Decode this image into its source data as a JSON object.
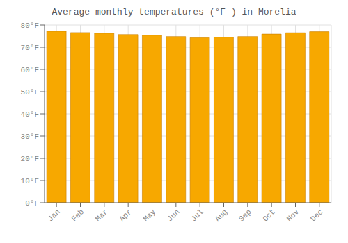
{
  "chart_data": {
    "type": "bar",
    "title": "Average monthly temperatures (°F ) in Morelia",
    "categories": [
      "Jan",
      "Feb",
      "Mar",
      "Apr",
      "May",
      "Jun",
      "Jul",
      "Aug",
      "Sep",
      "Oct",
      "Nov",
      "Dec"
    ],
    "values": [
      77.2,
      76.6,
      76.3,
      75.7,
      75.4,
      74.8,
      74.3,
      74.5,
      74.8,
      75.9,
      76.5,
      77.0
    ],
    "color": "#F7A800",
    "ylim": [
      0,
      80
    ],
    "yticks": [
      {
        "value": 0,
        "label": "0°F"
      },
      {
        "value": 10,
        "label": "10°F"
      },
      {
        "value": 20,
        "label": "20°F"
      },
      {
        "value": 30,
        "label": "30°F"
      },
      {
        "value": 40,
        "label": "40°F"
      },
      {
        "value": 50,
        "label": "50°F"
      },
      {
        "value": 60,
        "label": "60°F"
      },
      {
        "value": 70,
        "label": "70°F"
      },
      {
        "value": 80,
        "label": "80°F"
      }
    ],
    "grid": true
  }
}
